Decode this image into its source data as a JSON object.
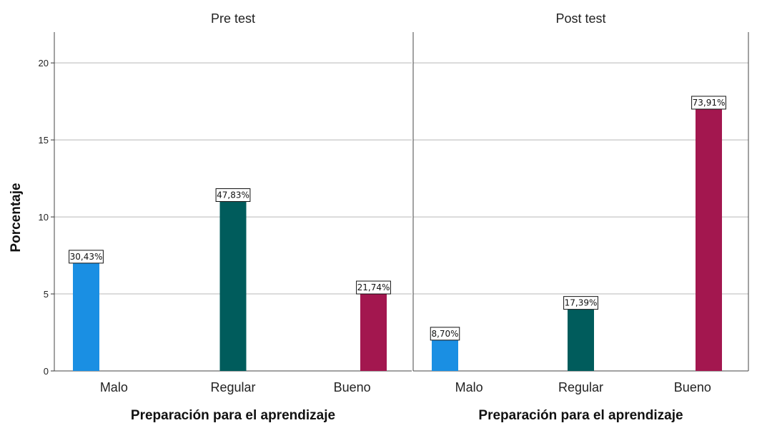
{
  "chart_data": {
    "type": "bar",
    "ylabel": "Porcentaje",
    "ylim": [
      0,
      22
    ],
    "yticks": [
      0,
      5,
      10,
      15,
      20
    ],
    "grid": true,
    "categories": [
      "Malo",
      "Regular",
      "Bueno"
    ],
    "colors": [
      "#1a8fe3",
      "#005c5c",
      "#a3174f"
    ],
    "panels": [
      {
        "title": "Pre test",
        "xlabel": "Preparación para el aprendizaje",
        "values": [
          7,
          11,
          5
        ],
        "labels": [
          "30,43%",
          "47,83%",
          "21,74%"
        ]
      },
      {
        "title": "Post test",
        "xlabel": "Preparación para el aprendizaje",
        "values": [
          2,
          4,
          17
        ],
        "labels": [
          "8,70%",
          "17,39%",
          "73,91%"
        ]
      }
    ]
  }
}
